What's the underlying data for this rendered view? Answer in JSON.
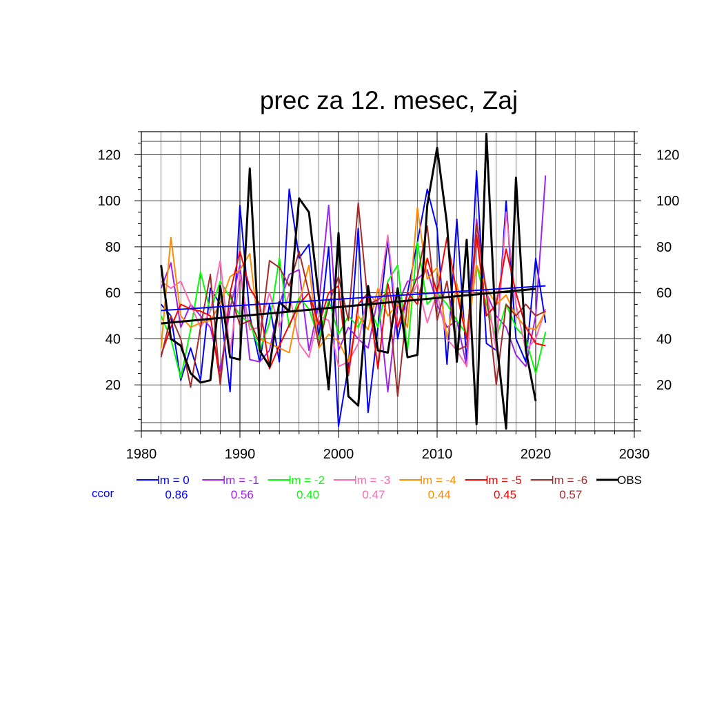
{
  "chart_data": {
    "type": "line",
    "title": "prec za 12. mesec, Zaj",
    "xlim": [
      1980,
      2030
    ],
    "ylim": [
      0,
      130
    ],
    "x_ticks": [
      1980,
      1990,
      2000,
      2010,
      2020,
      2030
    ],
    "y_ticks": [
      20,
      40,
      60,
      80,
      100,
      120
    ],
    "x_tick_labels": [
      "1980",
      "1990",
      "2000",
      "2010",
      "2020",
      "2030"
    ],
    "y_tick_labels": [
      "20",
      "40",
      "60",
      "80",
      "100",
      "120"
    ],
    "grid": true,
    "x": [
      1982,
      1983,
      1984,
      1985,
      1986,
      1987,
      1988,
      1989,
      1990,
      1991,
      1992,
      1993,
      1994,
      1995,
      1996,
      1997,
      1998,
      1999,
      2000,
      2001,
      2002,
      2003,
      2004,
      2005,
      2006,
      2007,
      2008,
      2009,
      2010,
      2011,
      2012,
      2013,
      2014,
      2015,
      2016,
      2017,
      2018,
      2019,
      2020,
      2021
    ],
    "series": [
      {
        "name": "lm = 0",
        "color": "#0000ff",
        "ccor": "0.86",
        "values": [
          55,
          50,
          22,
          36,
          22,
          62,
          55,
          17,
          98,
          50,
          30,
          55,
          30,
          105,
          75,
          81,
          40,
          80,
          2,
          28,
          88,
          8,
          45,
          83,
          40,
          60,
          82,
          105,
          88,
          29,
          92,
          30,
          113,
          38,
          35,
          100,
          40,
          30,
          75,
          47
        ],
        "trend": [
          52.3,
          63.0
        ]
      },
      {
        "name": "lm = -1",
        "color": "#a020f0",
        "ccor": "0.56",
        "values": [
          62,
          73,
          45,
          55,
          50,
          45,
          26,
          53,
          72,
          31,
          30,
          35,
          55,
          68,
          70,
          35,
          55,
          98,
          35,
          45,
          40,
          36,
          58,
          17,
          55,
          65,
          66,
          70,
          55,
          45,
          48,
          28,
          92,
          60,
          50,
          45,
          33,
          28,
          50,
          111
        ],
        "trend": null
      },
      {
        "name": "lm = -2",
        "color": "#00ff00",
        "ccor": "0.40",
        "values": [
          50,
          40,
          23,
          44,
          69,
          52,
          65,
          58,
          50,
          47,
          35,
          47,
          75,
          45,
          58,
          53,
          40,
          57,
          42,
          50,
          45,
          55,
          45,
          65,
          72,
          35,
          82,
          55,
          60,
          55,
          48,
          42,
          72,
          55,
          40,
          55,
          45,
          40,
          25,
          43
        ],
        "trend": null
      },
      {
        "name": "lm = -3",
        "color": "#ff69b4",
        "ccor": "0.47",
        "values": [
          65,
          62,
          65,
          55,
          45,
          52,
          74,
          34,
          68,
          44,
          45,
          60,
          45,
          60,
          38,
          32,
          50,
          48,
          28,
          30,
          38,
          60,
          55,
          85,
          45,
          55,
          64,
          47,
          60,
          40,
          35,
          28,
          85,
          62,
          35,
          95,
          55,
          35,
          40,
          53
        ],
        "trend": null
      },
      {
        "name": "lm = -4",
        "color": "#ff8c00",
        "ccor": "0.44",
        "values": [
          36,
          84,
          50,
          45,
          47,
          48,
          55,
          67,
          70,
          77,
          40,
          38,
          36,
          34,
          56,
          72,
          36,
          42,
          39,
          30,
          50,
          44,
          62,
          50,
          55,
          45,
          97,
          66,
          71,
          40,
          64,
          40,
          72,
          62,
          55,
          59,
          50,
          45,
          44,
          52
        ],
        "trend": null
      },
      {
        "name": "lm = -5",
        "color": "#ff0000",
        "ccor": "0.45",
        "values": [
          33,
          45,
          55,
          53,
          52,
          50,
          21,
          60,
          78,
          62,
          55,
          27,
          37,
          46,
          55,
          60,
          46,
          60,
          63,
          24,
          55,
          60,
          27,
          64,
          45,
          60,
          55,
          75,
          60,
          84,
          60,
          40,
          85,
          50,
          55,
          79,
          60,
          45,
          38,
          37
        ],
        "trend": null
      },
      {
        "name": "lm = -6",
        "color": "#a52a2a",
        "ccor": "0.57",
        "values": [
          32,
          50,
          40,
          19,
          45,
          68,
          20,
          60,
          46,
          48,
          38,
          74,
          71,
          63,
          78,
          60,
          37,
          55,
          67,
          48,
          99,
          55,
          57,
          60,
          15,
          56,
          67,
          89,
          48,
          65,
          35,
          37,
          90,
          60,
          20,
          55,
          50,
          55,
          50,
          52
        ],
        "trend": null
      },
      {
        "name": "OBS",
        "color": "#000000",
        "ccor": "",
        "values": [
          72,
          40,
          37,
          25,
          21,
          22,
          63,
          32,
          31,
          114,
          35,
          28,
          56,
          52,
          101,
          95,
          58,
          18,
          86,
          15,
          11,
          63,
          35,
          34,
          62,
          32,
          33,
          98,
          123,
          90,
          30,
          83,
          3,
          129,
          40,
          1,
          110,
          35,
          13,
          null
        ],
        "trend": [
          46.7,
          61.7
        ]
      }
    ],
    "ccor_label": "ccor",
    "legend_position": "bottom"
  }
}
